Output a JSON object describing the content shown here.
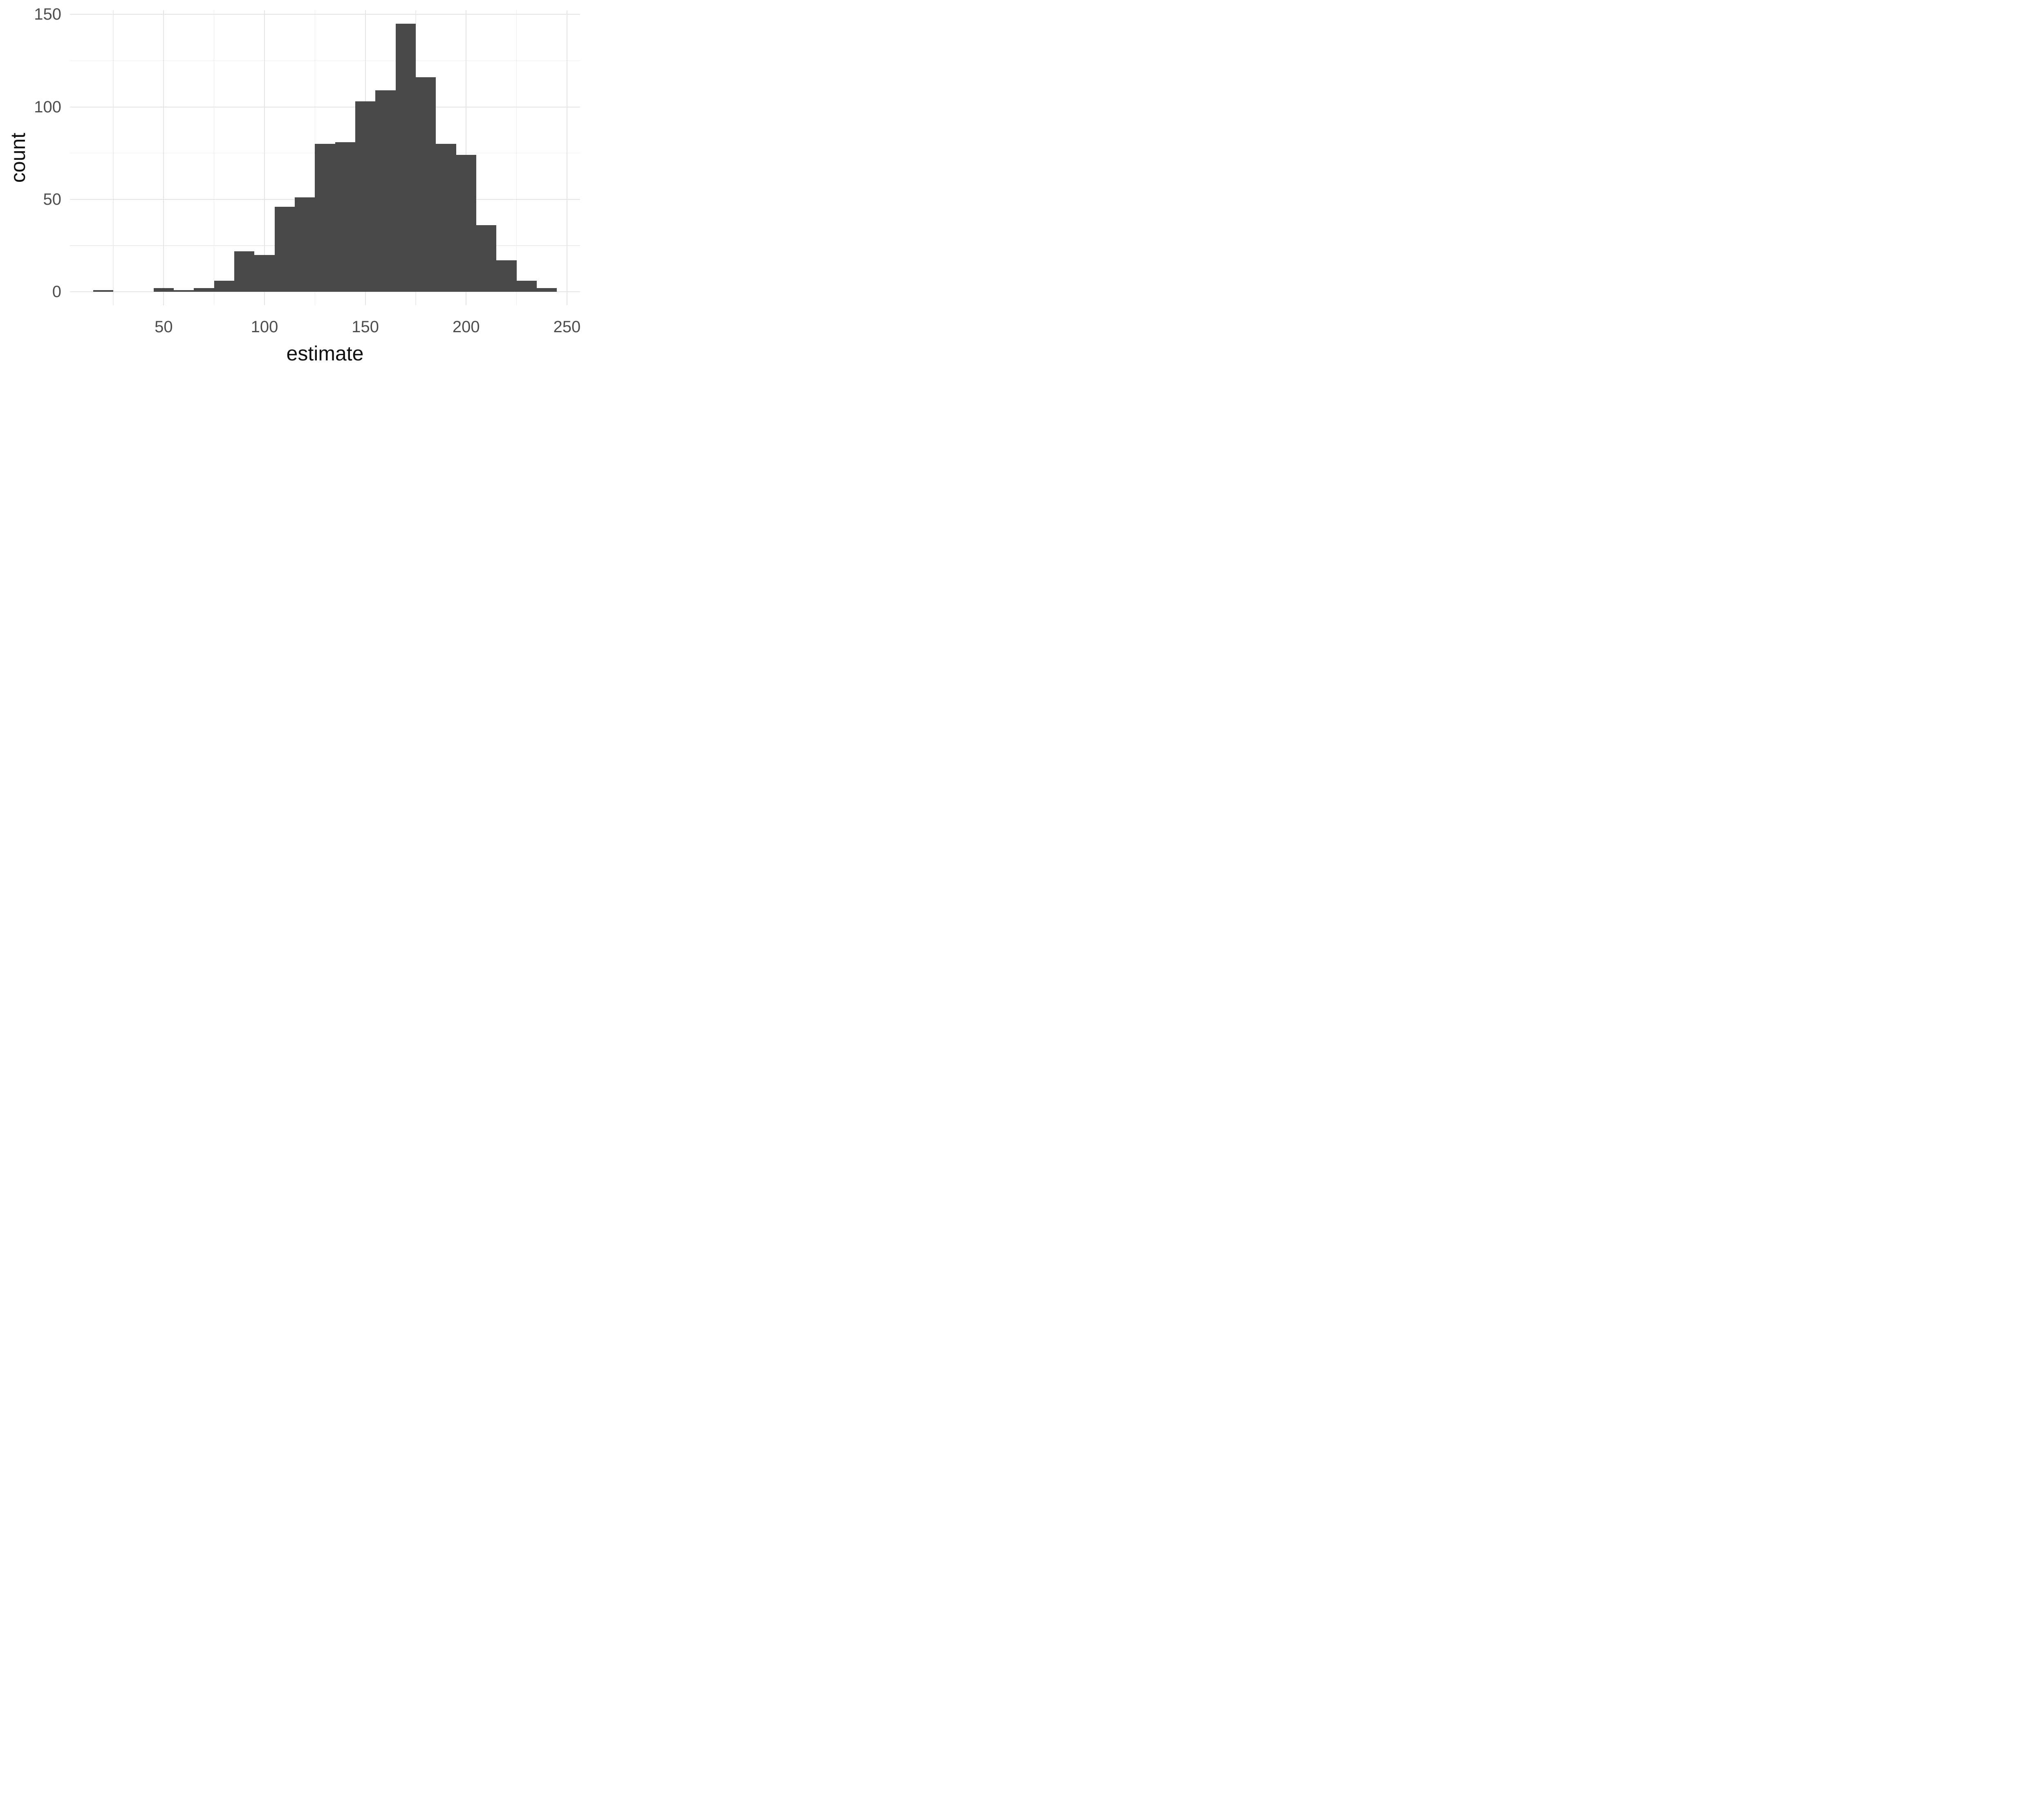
{
  "chart_data": {
    "type": "bar",
    "subtype": "histogram",
    "title": "",
    "xlabel": "estimate",
    "ylabel": "count",
    "bin_width": 10,
    "bin_centers": [
      20,
      30,
      40,
      50,
      60,
      70,
      80,
      90,
      100,
      110,
      120,
      130,
      140,
      150,
      160,
      170,
      180,
      190,
      200,
      210,
      220,
      230,
      240
    ],
    "counts": [
      1,
      0,
      0,
      2,
      1,
      2,
      6,
      22,
      20,
      46,
      51,
      80,
      81,
      103,
      109,
      145,
      116,
      80,
      74,
      36,
      17,
      6,
      2
    ],
    "total_n": 1000,
    "x_major_ticks": [
      50,
      100,
      150,
      200,
      250
    ],
    "x_minor_ticks": [
      25,
      75,
      125,
      175,
      225
    ],
    "y_major_ticks": [
      0,
      50,
      100,
      150
    ],
    "y_minor_ticks": [
      25,
      75,
      125
    ],
    "xlim": [
      3.5,
      256.5
    ],
    "ylim": [
      -7.25,
      152.25
    ],
    "grid": true,
    "legend": "none",
    "colors": {
      "bar_fill": "#484848",
      "grid_major": "#e4e4e4",
      "grid_minor": "#ebebeb",
      "tick_label": "#4d4d4d",
      "axis_title": "#111111",
      "background": "#ffffff"
    }
  }
}
